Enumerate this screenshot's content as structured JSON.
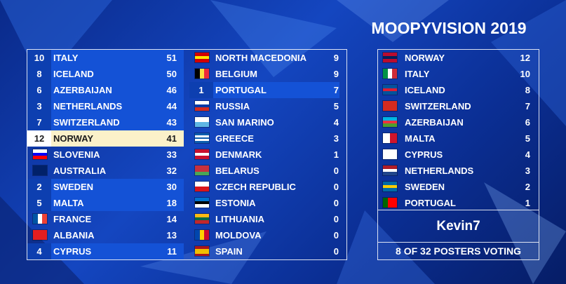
{
  "title": "MOOPYVISION 2019",
  "scoreboard": [
    {
      "points": 10,
      "country": "ITALY",
      "score": 51,
      "flag": [
        "#009246",
        "#ffffff",
        "#ce2b37"
      ],
      "flag_dir": "v"
    },
    {
      "points": 8,
      "country": "ICELAND",
      "score": 50,
      "flag": [
        "#02529c",
        "#dc1e35",
        "#02529c"
      ]
    },
    {
      "points": 6,
      "country": "AZERBAIJAN",
      "score": 46,
      "flag": [
        "#00b5e2",
        "#ef3340",
        "#509e2f"
      ]
    },
    {
      "points": 3,
      "country": "NETHERLANDS",
      "score": 44,
      "flag": [
        "#ae1c28",
        "#ffffff",
        "#21468b"
      ]
    },
    {
      "points": 7,
      "country": "SWITZERLAND",
      "score": 43,
      "flag": [
        "#d52b1e"
      ]
    },
    {
      "points": 12,
      "country": "NORWAY",
      "score": 41,
      "flag": [
        "#ba0c2f",
        "#00205b",
        "#ba0c2f"
      ]
    },
    {
      "country": "SLOVENIA",
      "score": 33,
      "flag": [
        "#ffffff",
        "#0000ff",
        "#ff0000"
      ]
    },
    {
      "country": "AUSTRALIA",
      "score": 32,
      "flag": [
        "#012169"
      ]
    },
    {
      "points": 2,
      "country": "SWEDEN",
      "score": 30,
      "flag": [
        "#006aa7",
        "#fecc00",
        "#006aa7"
      ]
    },
    {
      "points": 5,
      "country": "MALTA",
      "score": 18,
      "flag": [
        "#ffffff",
        "#cf142b"
      ],
      "flag_dir": "v"
    },
    {
      "country": "FRANCE",
      "score": 14,
      "flag": [
        "#0055a4",
        "#ffffff",
        "#ef4135"
      ],
      "flag_dir": "v"
    },
    {
      "country": "ALBANIA",
      "score": 13,
      "flag": [
        "#e41e20"
      ]
    },
    {
      "points": 4,
      "country": "CYPRUS",
      "score": 11,
      "flag": [
        "#ffffff"
      ]
    },
    {
      "country": "NORTH MACEDONIA",
      "score": 9,
      "flag": [
        "#d20000",
        "#ffe600",
        "#d20000"
      ]
    },
    {
      "country": "BELGIUM",
      "score": 9,
      "flag": [
        "#000000",
        "#fae042",
        "#ed2939"
      ],
      "flag_dir": "v"
    },
    {
      "points": 1,
      "country": "PORTUGAL",
      "score": 7,
      "flag": [
        "#006600",
        "#ff0000",
        "#ff0000"
      ],
      "flag_dir": "v"
    },
    {
      "country": "RUSSIA",
      "score": 5,
      "flag": [
        "#ffffff",
        "#0039a6",
        "#d52b1e"
      ]
    },
    {
      "country": "SAN MARINO",
      "score": 4,
      "flag": [
        "#ffffff",
        "#5eb6e4"
      ]
    },
    {
      "country": "GREECE",
      "score": 3,
      "flag": [
        "#0d5eaf",
        "#ffffff",
        "#0d5eaf",
        "#ffffff",
        "#0d5eaf"
      ]
    },
    {
      "country": "DENMARK",
      "score": 1,
      "flag": [
        "#c8102e",
        "#ffffff",
        "#c8102e"
      ]
    },
    {
      "country": "BELARUS",
      "score": 0,
      "flag": [
        "#c8313e",
        "#c8313e",
        "#4aa657"
      ]
    },
    {
      "country": "CZECH REPUBLIC",
      "score": 0,
      "flag": [
        "#ffffff",
        "#d7141a"
      ]
    },
    {
      "country": "ESTONIA",
      "score": 0,
      "flag": [
        "#0072ce",
        "#000000",
        "#ffffff"
      ]
    },
    {
      "country": "LITHUANIA",
      "score": 0,
      "flag": [
        "#fdb913",
        "#006a44",
        "#c1272d"
      ]
    },
    {
      "country": "MOLDOVA",
      "score": 0,
      "flag": [
        "#0046ae",
        "#ffd200",
        "#cc092f"
      ],
      "flag_dir": "v"
    },
    {
      "country": "SPAIN",
      "score": 0,
      "flag": [
        "#aa151b",
        "#f1bf00",
        "#f1bf00",
        "#aa151b"
      ]
    }
  ],
  "voter": {
    "name": "Kevin7",
    "votes": [
      {
        "country": "NORWAY",
        "points": 12,
        "flag": [
          "#ba0c2f",
          "#00205b",
          "#ba0c2f"
        ]
      },
      {
        "country": "ITALY",
        "points": 10,
        "flag": [
          "#009246",
          "#ffffff",
          "#ce2b37"
        ],
        "flag_dir": "v"
      },
      {
        "country": "ICELAND",
        "points": 8,
        "flag": [
          "#02529c",
          "#dc1e35",
          "#02529c"
        ]
      },
      {
        "country": "SWITZERLAND",
        "points": 7,
        "flag": [
          "#d52b1e"
        ]
      },
      {
        "country": "AZERBAIJAN",
        "points": 6,
        "flag": [
          "#00b5e2",
          "#ef3340",
          "#509e2f"
        ]
      },
      {
        "country": "MALTA",
        "points": 5,
        "flag": [
          "#ffffff",
          "#cf142b"
        ],
        "flag_dir": "v"
      },
      {
        "country": "CYPRUS",
        "points": 4,
        "flag": [
          "#ffffff"
        ]
      },
      {
        "country": "NETHERLANDS",
        "points": 3,
        "flag": [
          "#ae1c28",
          "#ffffff",
          "#21468b"
        ]
      },
      {
        "country": "SWEDEN",
        "points": 2,
        "flag": [
          "#006aa7",
          "#fecc00",
          "#006aa7"
        ]
      },
      {
        "country": "PORTUGAL",
        "points": 1,
        "flag": [
          "#006600",
          "#ff0000",
          "#ff0000"
        ],
        "flag_dir": "v"
      }
    ]
  },
  "footer": "8 OF 32 POSTERS VOTING"
}
